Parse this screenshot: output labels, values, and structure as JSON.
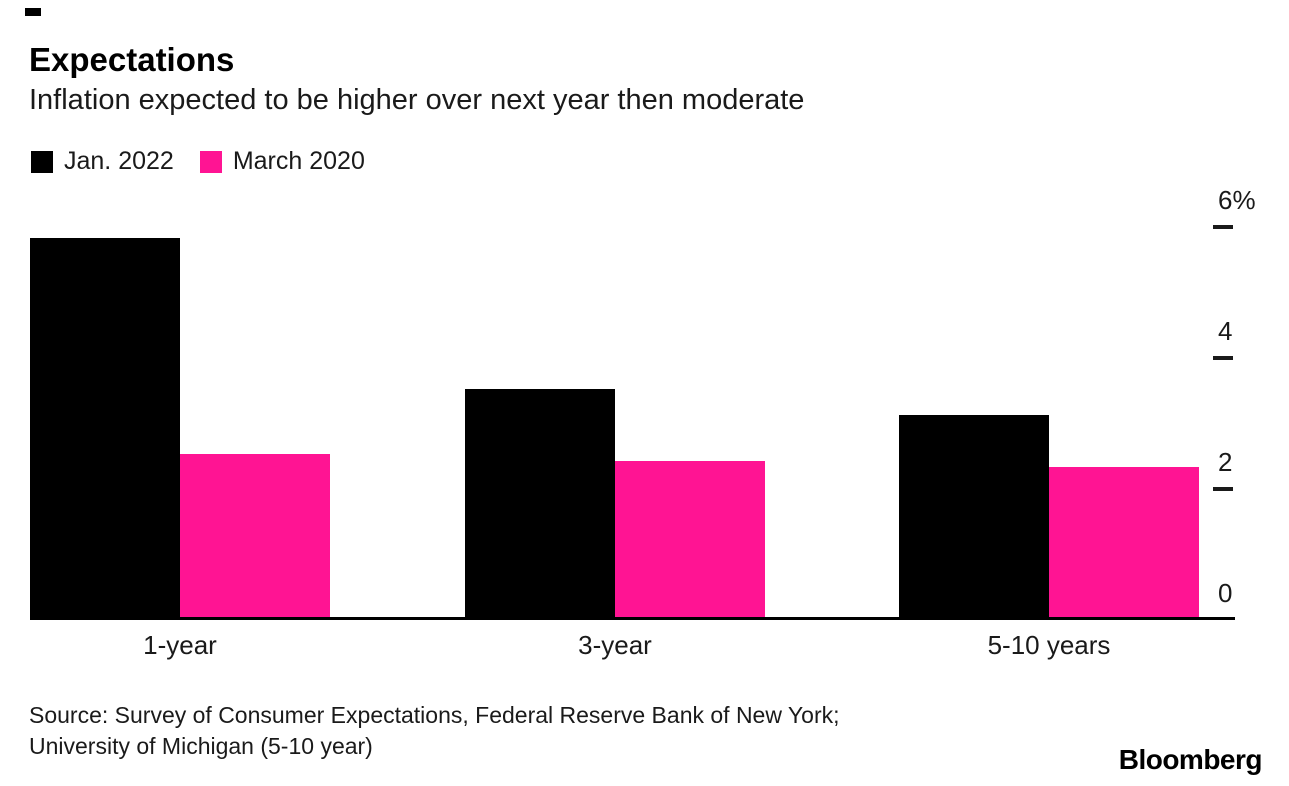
{
  "header": {
    "title": "Expectations",
    "subtitle": "Inflation expected to be higher over next year then moderate"
  },
  "legend": [
    {
      "label": "Jan. 2022",
      "color": "#000000"
    },
    {
      "label": "March 2020",
      "color": "#ff1493"
    }
  ],
  "chart_data": {
    "type": "bar",
    "title": "Expectations",
    "subtitle": "Inflation expected to be higher over next year then moderate",
    "categories": [
      "1-year",
      "3-year",
      "5-10 years"
    ],
    "series": [
      {
        "name": "Jan. 2022",
        "color": "#000000",
        "values": [
          5.8,
          3.5,
          3.1
        ]
      },
      {
        "name": "March 2020",
        "color": "#ff1493",
        "values": [
          2.5,
          2.4,
          2.3
        ]
      }
    ],
    "xlabel": "",
    "ylabel": "",
    "unit": "%",
    "y_ticks": [
      0,
      2,
      4,
      6
    ],
    "y_tick_labels": [
      "0",
      "2",
      "4",
      "6%"
    ],
    "ylim": [
      0,
      6.4
    ],
    "axis_side": "right",
    "grid": false,
    "legend_position": "top-left"
  },
  "source": {
    "line1": "Source: Survey of Consumer Expectations, Federal Reserve Bank of New York;",
    "line2": "University of Michigan (5-10 year)"
  },
  "branding": {
    "logo": "Bloomberg"
  }
}
